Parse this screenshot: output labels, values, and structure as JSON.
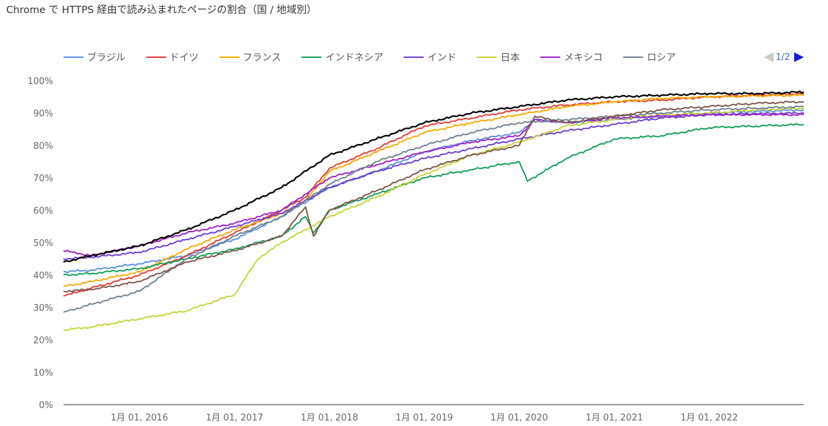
{
  "chart_data": {
    "type": "line",
    "title": "Chrome で HTTPS 経由で読み込まれたページの割合（国 / 地域別）",
    "xlabel": "",
    "ylabel": "",
    "ylim": [
      0,
      100
    ],
    "y_ticks": [
      "0%",
      "10%",
      "20%",
      "30%",
      "40%",
      "50%",
      "60%",
      "70%",
      "80%",
      "90%",
      "100%"
    ],
    "x_range": [
      "2015-03-15",
      "2022-12-31"
    ],
    "x_ticks": [
      {
        "date": "2016-01-01",
        "label": "1月 01, 2016"
      },
      {
        "date": "2017-01-01",
        "label": "1月 01, 2017"
      },
      {
        "date": "2018-01-01",
        "label": "1月 01, 2018"
      },
      {
        "date": "2019-01-01",
        "label": "1月 01, 2019"
      },
      {
        "date": "2020-01-01",
        "label": "1月 01, 2020"
      },
      {
        "date": "2021-01-01",
        "label": "1月 01, 2021"
      },
      {
        "date": "2022-01-01",
        "label": "1月 01, 2022"
      }
    ],
    "grid": false,
    "legend_position": "top",
    "legend_page": "1/2",
    "series": [
      {
        "name": "ブラジル",
        "color": "#5b8fe3",
        "points": [
          [
            "2015-03-15",
            41
          ],
          [
            "2015-07-01",
            41.5
          ],
          [
            "2016-01-01",
            43.5
          ],
          [
            "2016-07-01",
            46
          ],
          [
            "2017-01-01",
            51
          ],
          [
            "2017-07-01",
            58
          ],
          [
            "2018-01-01",
            67
          ],
          [
            "2018-07-01",
            72
          ],
          [
            "2019-01-01",
            78
          ],
          [
            "2019-07-01",
            81.5
          ],
          [
            "2020-01-01",
            84
          ],
          [
            "2020-03-01",
            88
          ],
          [
            "2020-07-01",
            87
          ],
          [
            "2021-01-01",
            88
          ],
          [
            "2021-07-01",
            89
          ],
          [
            "2022-01-01",
            90
          ],
          [
            "2022-07-01",
            90.5
          ],
          [
            "2022-12-31",
            91
          ]
        ]
      },
      {
        "name": "ドイツ",
        "color": "#e53935",
        "points": [
          [
            "2015-03-15",
            33.5
          ],
          [
            "2015-07-01",
            36
          ],
          [
            "2016-01-01",
            40
          ],
          [
            "2016-07-01",
            46
          ],
          [
            "2017-01-01",
            53
          ],
          [
            "2017-07-01",
            60
          ],
          [
            "2017-10-01",
            64
          ],
          [
            "2018-01-01",
            73
          ],
          [
            "2018-07-01",
            79
          ],
          [
            "2019-01-01",
            86
          ],
          [
            "2019-07-01",
            88.5
          ],
          [
            "2020-01-01",
            91
          ],
          [
            "2020-07-01",
            92.5
          ],
          [
            "2021-01-01",
            93.5
          ],
          [
            "2021-07-01",
            94
          ],
          [
            "2022-01-01",
            95
          ],
          [
            "2022-07-01",
            95.5
          ],
          [
            "2022-12-31",
            96
          ]
        ]
      },
      {
        "name": "フランス",
        "color": "#f4a900",
        "points": [
          [
            "2015-03-15",
            36.5
          ],
          [
            "2015-07-01",
            38
          ],
          [
            "2016-01-01",
            41
          ],
          [
            "2016-07-01",
            48
          ],
          [
            "2017-01-01",
            54
          ],
          [
            "2017-07-01",
            59
          ],
          [
            "2017-10-01",
            63
          ],
          [
            "2018-01-01",
            72
          ],
          [
            "2018-07-01",
            78
          ],
          [
            "2019-01-01",
            84
          ],
          [
            "2019-07-01",
            87
          ],
          [
            "2020-01-01",
            89.5
          ],
          [
            "2020-07-01",
            92
          ],
          [
            "2021-01-01",
            93.5
          ],
          [
            "2021-07-01",
            94.5
          ],
          [
            "2022-01-01",
            95
          ],
          [
            "2022-07-01",
            95.3
          ],
          [
            "2022-12-31",
            95.5
          ]
        ]
      },
      {
        "name": "インドネシア",
        "color": "#0f9d58",
        "points": [
          [
            "2015-03-15",
            40
          ],
          [
            "2015-07-01",
            40.5
          ],
          [
            "2016-01-01",
            42
          ],
          [
            "2016-07-01",
            45
          ],
          [
            "2017-01-01",
            48
          ],
          [
            "2017-07-01",
            52
          ],
          [
            "2017-10-01",
            58
          ],
          [
            "2017-11-01",
            53
          ],
          [
            "2018-01-01",
            60
          ],
          [
            "2018-07-01",
            65
          ],
          [
            "2019-01-01",
            70
          ],
          [
            "2019-07-01",
            72.5
          ],
          [
            "2020-01-01",
            75
          ],
          [
            "2020-02-01",
            69
          ],
          [
            "2020-07-01",
            76
          ],
          [
            "2021-01-01",
            82
          ],
          [
            "2021-07-01",
            83
          ],
          [
            "2022-01-01",
            85.5
          ],
          [
            "2022-07-01",
            86
          ],
          [
            "2022-12-31",
            86.5
          ]
        ]
      },
      {
        "name": "インド",
        "color": "#6c3bd1",
        "points": [
          [
            "2015-03-15",
            45
          ],
          [
            "2015-07-01",
            45.5
          ],
          [
            "2016-01-01",
            47
          ],
          [
            "2016-07-01",
            51
          ],
          [
            "2017-01-01",
            55
          ],
          [
            "2017-07-01",
            59
          ],
          [
            "2018-01-01",
            67
          ],
          [
            "2018-07-01",
            72
          ],
          [
            "2019-01-01",
            76
          ],
          [
            "2019-07-01",
            79
          ],
          [
            "2020-01-01",
            82
          ],
          [
            "2020-07-01",
            84.5
          ],
          [
            "2021-01-01",
            86.5
          ],
          [
            "2021-07-01",
            88.5
          ],
          [
            "2022-01-01",
            89.5
          ],
          [
            "2022-07-01",
            89.8
          ],
          [
            "2022-12-31",
            90
          ]
        ]
      },
      {
        "name": "日本",
        "color": "#c6d436",
        "points": [
          [
            "2015-03-15",
            23
          ],
          [
            "2015-07-01",
            24
          ],
          [
            "2016-01-01",
            26.5
          ],
          [
            "2016-07-01",
            29
          ],
          [
            "2017-01-01",
            34
          ],
          [
            "2017-04-01",
            45
          ],
          [
            "2017-07-01",
            50
          ],
          [
            "2018-01-01",
            58
          ],
          [
            "2018-07-01",
            64
          ],
          [
            "2019-01-01",
            71
          ],
          [
            "2019-07-01",
            77
          ],
          [
            "2020-01-01",
            81
          ],
          [
            "2020-07-01",
            86
          ],
          [
            "2021-01-01",
            88
          ],
          [
            "2021-07-01",
            89.5
          ],
          [
            "2022-01-01",
            90
          ],
          [
            "2022-07-01",
            91
          ],
          [
            "2022-12-31",
            91.5
          ]
        ]
      },
      {
        "name": "メキシコ",
        "color": "#a020c8",
        "points": [
          [
            "2015-03-15",
            47.5
          ],
          [
            "2015-07-01",
            46
          ],
          [
            "2016-01-01",
            49
          ],
          [
            "2016-07-01",
            53
          ],
          [
            "2017-01-01",
            56
          ],
          [
            "2017-07-01",
            60
          ],
          [
            "2018-01-01",
            70
          ],
          [
            "2018-07-01",
            74
          ],
          [
            "2019-01-01",
            78
          ],
          [
            "2019-07-01",
            81
          ],
          [
            "2020-01-01",
            83
          ],
          [
            "2020-03-01",
            88
          ],
          [
            "2020-07-01",
            87
          ],
          [
            "2021-01-01",
            88.5
          ],
          [
            "2021-07-01",
            89
          ],
          [
            "2022-01-01",
            89.5
          ],
          [
            "2022-07-01",
            89.5
          ],
          [
            "2022-12-31",
            89.5
          ]
        ]
      },
      {
        "name": "ロシア",
        "color": "#708090",
        "points": [
          [
            "2015-03-15",
            28.5
          ],
          [
            "2015-07-01",
            31
          ],
          [
            "2016-01-01",
            35
          ],
          [
            "2016-07-01",
            45
          ],
          [
            "2017-01-01",
            52
          ],
          [
            "2017-07-01",
            58
          ],
          [
            "2018-01-01",
            68
          ],
          [
            "2018-07-01",
            75
          ],
          [
            "2019-01-01",
            80
          ],
          [
            "2019-07-01",
            84
          ],
          [
            "2020-01-01",
            87
          ],
          [
            "2020-07-01",
            88
          ],
          [
            "2021-01-01",
            89
          ],
          [
            "2021-07-01",
            90
          ],
          [
            "2022-01-01",
            91
          ],
          [
            "2022-07-01",
            91.5
          ],
          [
            "2022-12-31",
            92
          ]
        ]
      },
      {
        "name": "",
        "color": "#000000",
        "points": [
          [
            "2015-03-15",
            44
          ],
          [
            "2015-07-01",
            46
          ],
          [
            "2016-01-01",
            49
          ],
          [
            "2016-07-01",
            54
          ],
          [
            "2017-01-01",
            60
          ],
          [
            "2017-07-01",
            67
          ],
          [
            "2018-01-01",
            77
          ],
          [
            "2018-07-01",
            82
          ],
          [
            "2019-01-01",
            87
          ],
          [
            "2019-07-01",
            90
          ],
          [
            "2020-01-01",
            92
          ],
          [
            "2020-07-01",
            94
          ],
          [
            "2021-01-01",
            95
          ],
          [
            "2021-07-01",
            95.5
          ],
          [
            "2022-01-01",
            96
          ],
          [
            "2022-07-01",
            96
          ],
          [
            "2022-12-31",
            96.5
          ]
        ]
      },
      {
        "name": "",
        "color": "#795548",
        "points": [
          [
            "2015-03-15",
            35
          ],
          [
            "2015-07-01",
            35.5
          ],
          [
            "2016-01-01",
            38
          ],
          [
            "2016-07-01",
            44
          ],
          [
            "2017-01-01",
            47.5
          ],
          [
            "2017-07-01",
            52
          ],
          [
            "2017-10-01",
            61
          ],
          [
            "2017-11-01",
            52
          ],
          [
            "2018-01-01",
            60
          ],
          [
            "2018-07-01",
            66
          ],
          [
            "2019-01-01",
            72.5
          ],
          [
            "2019-07-01",
            77
          ],
          [
            "2020-01-01",
            80
          ],
          [
            "2020-03-01",
            89
          ],
          [
            "2020-07-01",
            87
          ],
          [
            "2021-01-01",
            89
          ],
          [
            "2021-07-01",
            91
          ],
          [
            "2022-01-01",
            92
          ],
          [
            "2022-07-01",
            93
          ],
          [
            "2022-12-31",
            93.5
          ]
        ]
      }
    ]
  }
}
